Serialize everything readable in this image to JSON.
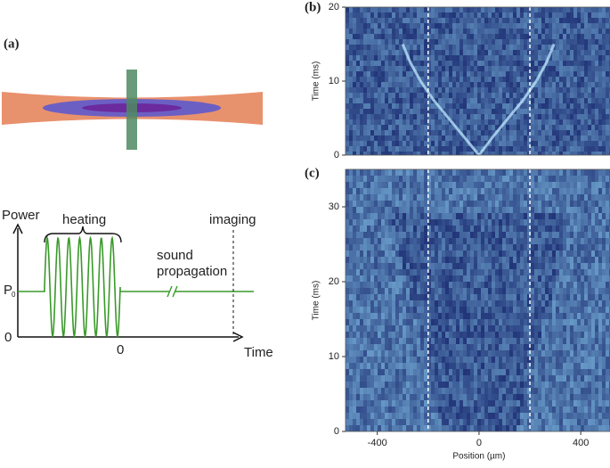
{
  "panel_labels": [
    "(a)",
    "(b)",
    "(c)"
  ],
  "diagram": {
    "power_label": "Power",
    "heating": "heating",
    "sound_propagation": [
      "sound",
      "propagation"
    ],
    "imaging": "imaging",
    "p0": "P",
    "p0_sub": "0",
    "y_zero": "0",
    "x_zero": "0",
    "time_label": "Time"
  },
  "chart_data": [
    {
      "type": "heatmap",
      "ylabel": "Time (ms)",
      "xlim": [
        -525,
        515
      ],
      "ylim": [
        0,
        20
      ],
      "yticks": [
        0,
        10,
        20
      ],
      "colors": [
        "#1c2d72",
        "#8fd3f4"
      ],
      "vlines": [
        -200,
        200
      ],
      "series": [
        {
          "color": "#bfeaff",
          "x": [
            0,
            -60,
            -120,
            -180,
            -230,
            -270,
            -300
          ],
          "values": [
            0,
            2.5,
            5,
            7.5,
            10,
            12.5,
            15
          ]
        },
        {
          "color": "#bfeaff",
          "x": [
            0,
            55,
            115,
            175,
            225,
            265,
            295
          ],
          "values": [
            0,
            2.5,
            5,
            7.5,
            10,
            12.5,
            15
          ]
        }
      ]
    },
    {
      "type": "heatmap",
      "xlabel": "Position (µm)",
      "ylabel": "Time (ms)",
      "xlim": [
        -525,
        515
      ],
      "ylim": [
        0,
        35
      ],
      "xticks": [
        -400,
        0,
        400
      ],
      "yticks": [
        0,
        10,
        20,
        30
      ],
      "colors": [
        "#1c2d72",
        "#8fd3f4"
      ],
      "vlines": [
        -200,
        200
      ],
      "series": []
    }
  ]
}
